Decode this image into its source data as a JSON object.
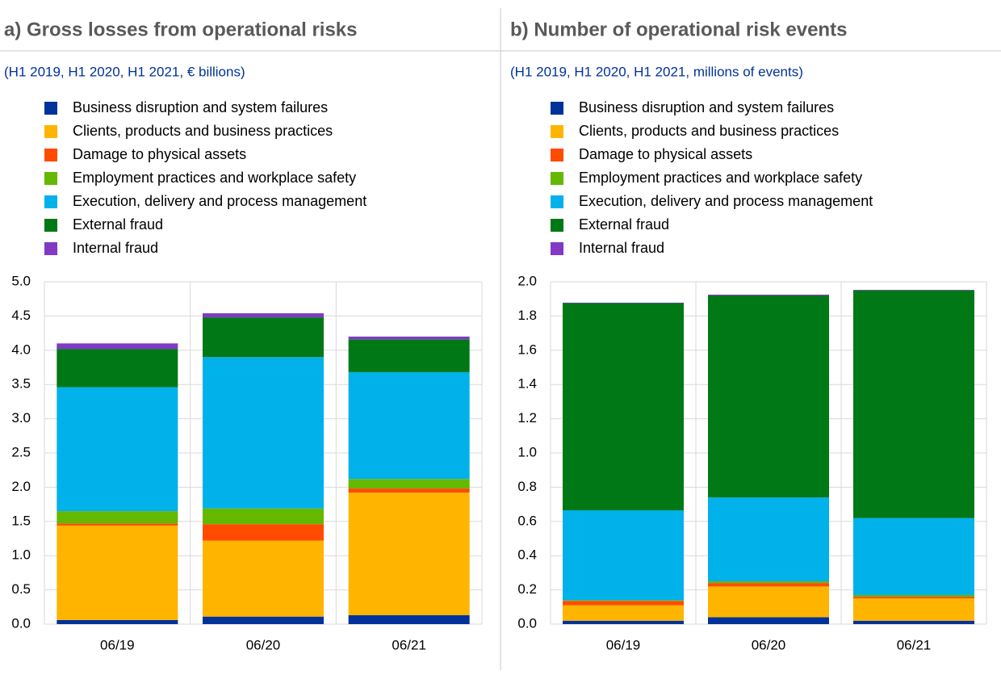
{
  "chart_data": [
    {
      "type": "bar",
      "stacked": true,
      "title": "a) Gross losses from operational risks",
      "subtitle": "(H1 2019, H1 2020, H1 2021, € billions)",
      "categories": [
        "06/19",
        "06/20",
        "06/21"
      ],
      "series": [
        {
          "name": "Business disruption and system failures",
          "color": "#003299",
          "values": [
            0.06,
            0.11,
            0.13
          ]
        },
        {
          "name": "Clients, products and business practices",
          "color": "#ffb400",
          "values": [
            1.38,
            1.11,
            1.79
          ]
        },
        {
          "name": "Damage to physical assets",
          "color": "#ff4b00",
          "values": [
            0.03,
            0.24,
            0.06
          ]
        },
        {
          "name": "Employment practices and workplace safety",
          "color": "#65b800",
          "values": [
            0.18,
            0.23,
            0.14
          ]
        },
        {
          "name": "Execution, delivery and process management",
          "color": "#00b1ea",
          "values": [
            1.81,
            2.21,
            1.56
          ]
        },
        {
          "name": "External fraud",
          "color": "#007816",
          "values": [
            0.56,
            0.58,
            0.48
          ]
        },
        {
          "name": "Internal fraud",
          "color": "#8139c6",
          "values": [
            0.08,
            0.06,
            0.04
          ]
        }
      ],
      "ylim": [
        0,
        5
      ],
      "yticks": [
        {
          "value": 0,
          "label": "0.0"
        },
        {
          "value": 0.5,
          "label": "0.5"
        },
        {
          "value": 1,
          "label": "1.0"
        },
        {
          "value": 1.5,
          "label": "1.5"
        },
        {
          "value": 2,
          "label": "2.0"
        },
        {
          "value": 2.5,
          "label": "2.5"
        },
        {
          "value": 3,
          "label": "3.0"
        },
        {
          "value": 3.5,
          "label": "3.5"
        },
        {
          "value": 4,
          "label": "4.0"
        },
        {
          "value": 4.5,
          "label": "4.5"
        },
        {
          "value": 5,
          "label": "5.0"
        }
      ],
      "grid": true
    },
    {
      "type": "bar",
      "stacked": true,
      "title": "b) Number of operational risk events",
      "subtitle": "(H1 2019, H1 2020, H1 2021, millions of events)",
      "categories": [
        "06/19",
        "06/20",
        "06/21"
      ],
      "series": [
        {
          "name": "Business disruption and system failures",
          "color": "#003299",
          "values": [
            0.02,
            0.04,
            0.02
          ]
        },
        {
          "name": "Clients, products and business practices",
          "color": "#ffb400",
          "values": [
            0.09,
            0.18,
            0.13
          ]
        },
        {
          "name": "Damage to physical assets",
          "color": "#ff4b00",
          "values": [
            0.025,
            0.02,
            0.01
          ]
        },
        {
          "name": "Employment practices and workplace safety",
          "color": "#65b800",
          "values": [
            0.005,
            0.01,
            0.01
          ]
        },
        {
          "name": "Execution, delivery and process management",
          "color": "#00b1ea",
          "values": [
            0.525,
            0.49,
            0.45
          ]
        },
        {
          "name": "External fraud",
          "color": "#007816",
          "values": [
            1.21,
            1.18,
            1.33
          ]
        },
        {
          "name": "Internal fraud",
          "color": "#8139c6",
          "values": [
            0.003,
            0.005,
            0.003
          ]
        }
      ],
      "ylim": [
        0,
        2
      ],
      "yticks": [
        {
          "value": 0,
          "label": "0.0"
        },
        {
          "value": 0.2,
          "label": "0.2"
        },
        {
          "value": 0.4,
          "label": "0.4"
        },
        {
          "value": 0.6,
          "label": "0.6"
        },
        {
          "value": 0.8,
          "label": "0.8"
        },
        {
          "value": 1,
          "label": "1.0"
        },
        {
          "value": 1.2,
          "label": "1.2"
        },
        {
          "value": 1.4,
          "label": "1.4"
        },
        {
          "value": 1.6,
          "label": "1.6"
        },
        {
          "value": 1.8,
          "label": "1.8"
        },
        {
          "value": 2,
          "label": "2.0"
        }
      ],
      "grid": true
    }
  ]
}
